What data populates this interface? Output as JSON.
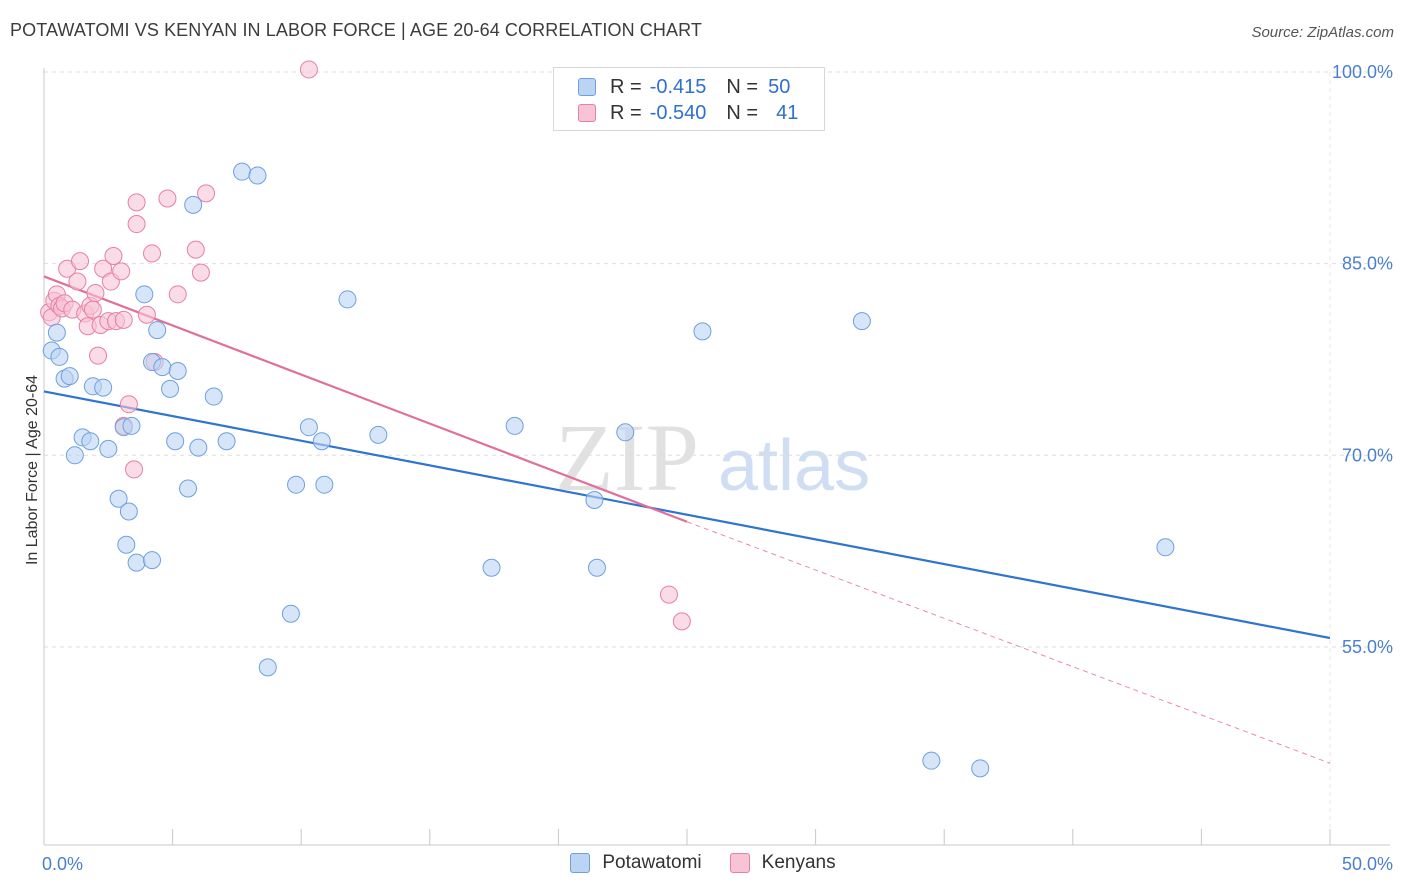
{
  "header": {
    "title": "POTAWATOMI VS KENYAN IN LABOR FORCE | AGE 20-64 CORRELATION CHART",
    "source": "Source: ZipAtlas.com"
  },
  "watermark": {
    "zip": "ZIP",
    "atlas": "atlas"
  },
  "legend": {
    "rows": [
      {
        "r_label": "R =",
        "r_value": "-0.415",
        "n_label": "N =",
        "n_value": "50"
      },
      {
        "r_label": "R =",
        "r_value": "-0.540",
        "n_label": "N =",
        "n_value": "41"
      }
    ]
  },
  "chart_data": {
    "type": "scatter",
    "title": "POTAWATOMI VS KENYAN IN LABOR FORCE | AGE 20-64 CORRELATION CHART",
    "xlabel": "",
    "ylabel": "In Labor Force | Age 20-64",
    "xlim": [
      0,
      50
    ],
    "ylim": [
      39.5,
      100
    ],
    "x_tick_labels": [
      "0.0%",
      "50.0%"
    ],
    "y_ticks": [
      55,
      70,
      85,
      100
    ],
    "y_tick_labels": [
      "55.0%",
      "70.0%",
      "85.0%",
      "100.0%"
    ],
    "grid": true,
    "legend_position": "top-center",
    "series": [
      {
        "name": "Potawatomi",
        "color": "#6ea0e0",
        "fill": "#bcd4f3",
        "points": [
          [
            0.5,
            79.6
          ],
          [
            0.3,
            78.2
          ],
          [
            0.6,
            77.7
          ],
          [
            0.8,
            76.0
          ],
          [
            1.0,
            76.2
          ],
          [
            1.9,
            75.4
          ],
          [
            2.3,
            75.3
          ],
          [
            1.2,
            70.0
          ],
          [
            1.5,
            71.4
          ],
          [
            1.8,
            71.1
          ],
          [
            2.5,
            70.5
          ],
          [
            3.1,
            72.2
          ],
          [
            3.4,
            72.3
          ],
          [
            2.9,
            66.6
          ],
          [
            3.3,
            65.6
          ],
          [
            3.2,
            63.0
          ],
          [
            3.6,
            61.6
          ],
          [
            4.2,
            61.8
          ],
          [
            3.9,
            82.6
          ],
          [
            4.4,
            79.8
          ],
          [
            4.2,
            77.3
          ],
          [
            4.6,
            76.9
          ],
          [
            5.2,
            76.6
          ],
          [
            4.9,
            75.2
          ],
          [
            5.1,
            71.1
          ],
          [
            5.6,
            67.4
          ],
          [
            6.0,
            70.6
          ],
          [
            6.6,
            74.6
          ],
          [
            7.1,
            71.1
          ],
          [
            7.7,
            92.2
          ],
          [
            8.3,
            91.9
          ],
          [
            5.8,
            89.6
          ],
          [
            8.7,
            53.4
          ],
          [
            9.6,
            57.6
          ],
          [
            9.8,
            67.7
          ],
          [
            10.3,
            72.2
          ],
          [
            10.8,
            71.1
          ],
          [
            10.9,
            67.7
          ],
          [
            11.8,
            82.2
          ],
          [
            13.0,
            71.6
          ],
          [
            17.4,
            61.2
          ],
          [
            18.3,
            72.3
          ],
          [
            21.4,
            66.5
          ],
          [
            21.5,
            61.2
          ],
          [
            22.6,
            71.8
          ],
          [
            25.6,
            79.7
          ],
          [
            31.8,
            80.5
          ],
          [
            34.5,
            46.1
          ],
          [
            36.4,
            45.5
          ],
          [
            43.6,
            62.8
          ]
        ]
      },
      {
        "name": "Kenyans",
        "color": "#e87fa3",
        "fill": "#f7c4d6",
        "points": [
          [
            0.2,
            81.2
          ],
          [
            0.3,
            80.8
          ],
          [
            0.4,
            82.1
          ],
          [
            0.5,
            82.6
          ],
          [
            0.6,
            81.7
          ],
          [
            0.7,
            81.5
          ],
          [
            0.8,
            81.9
          ],
          [
            0.9,
            84.6
          ],
          [
            1.1,
            81.4
          ],
          [
            1.3,
            83.6
          ],
          [
            1.4,
            85.2
          ],
          [
            1.6,
            81.1
          ],
          [
            1.7,
            80.1
          ],
          [
            1.8,
            81.7
          ],
          [
            1.9,
            81.4
          ],
          [
            2.0,
            82.7
          ],
          [
            2.1,
            77.8
          ],
          [
            2.2,
            80.2
          ],
          [
            2.3,
            84.6
          ],
          [
            2.5,
            80.5
          ],
          [
            2.6,
            83.6
          ],
          [
            2.7,
            85.6
          ],
          [
            2.8,
            80.5
          ],
          [
            3.0,
            84.4
          ],
          [
            3.1,
            80.6
          ],
          [
            3.3,
            74.0
          ],
          [
            3.6,
            89.8
          ],
          [
            3.6,
            88.1
          ],
          [
            3.5,
            68.9
          ],
          [
            4.0,
            81.0
          ],
          [
            4.2,
            85.8
          ],
          [
            4.3,
            77.3
          ],
          [
            4.8,
            90.1
          ],
          [
            5.2,
            82.6
          ],
          [
            5.9,
            86.1
          ],
          [
            6.1,
            84.3
          ],
          [
            6.3,
            90.5
          ],
          [
            3.1,
            72.3
          ],
          [
            10.3,
            100.2
          ],
          [
            24.3,
            59.1
          ],
          [
            24.8,
            57.0
          ]
        ]
      }
    ],
    "trend_lines": [
      {
        "series": "Potawatomi",
        "x": [
          0,
          50
        ],
        "y": [
          75.0,
          55.7
        ]
      },
      {
        "series": "Kenyans",
        "x": [
          0,
          25
        ],
        "y": [
          84.0,
          64.8
        ]
      },
      {
        "series": "Kenyans (extrapolated)",
        "x": [
          25,
          50
        ],
        "y": [
          64.8,
          45.9
        ]
      }
    ]
  },
  "bottom_legend": {
    "items": [
      "Potawatomi",
      "Kenyans"
    ]
  }
}
